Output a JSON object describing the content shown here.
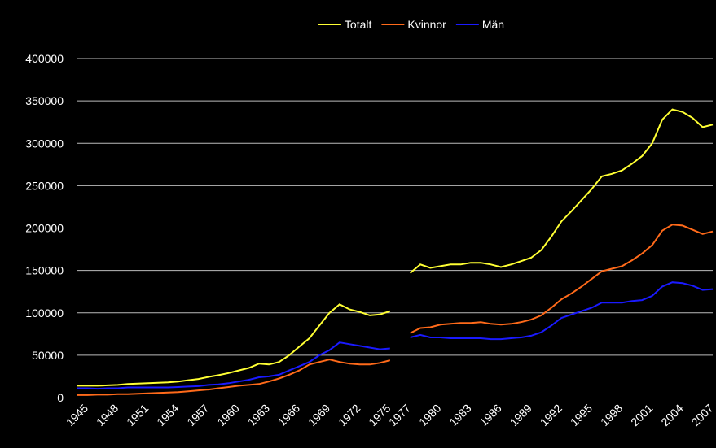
{
  "chart_data": {
    "type": "line",
    "categories": [
      "1945",
      null,
      null,
      "1948",
      null,
      null,
      "1951",
      null,
      null,
      "1954",
      null,
      null,
      "1957",
      null,
      null,
      "1960",
      null,
      null,
      "1963",
      null,
      null,
      "1966",
      null,
      null,
      "1969",
      null,
      null,
      "1972",
      null,
      null,
      "1975",
      null,
      "1977",
      null,
      null,
      "1980",
      null,
      null,
      "1983",
      null,
      null,
      "1986",
      null,
      null,
      "1989",
      null,
      null,
      "1992",
      null,
      null,
      "1995",
      null,
      null,
      "1998",
      null,
      null,
      "2001",
      null,
      null,
      "2004",
      null,
      null,
      "2007",
      null
    ],
    "series": [
      {
        "name": "Totalt",
        "color": "#ffff33",
        "values": [
          14000,
          14000,
          14000,
          14500,
          15000,
          16000,
          16500,
          17000,
          17500,
          18000,
          19000,
          20500,
          22000,
          24500,
          26500,
          29000,
          32000,
          35000,
          40000,
          39000,
          42000,
          50000,
          60000,
          70000,
          85000,
          100000,
          110000,
          104000,
          101000,
          97000,
          98000,
          102000,
          null,
          147000,
          157000,
          153000,
          155000,
          157000,
          157000,
          159000,
          159000,
          157000,
          154000,
          157000,
          161000,
          165000,
          174000,
          190000,
          208000,
          220000,
          233000,
          246000,
          261000,
          264000,
          268000,
          276000,
          285000,
          300000,
          328000,
          340000,
          337000,
          330000,
          319000,
          322000
        ]
      },
      {
        "name": "Kvinnor",
        "color": "#ff6a1a",
        "values": [
          3000,
          3000,
          3500,
          3500,
          4000,
          4000,
          4500,
          5000,
          5500,
          6000,
          6500,
          7500,
          8500,
          9500,
          11000,
          12500,
          14000,
          15000,
          16000,
          19000,
          22500,
          27000,
          32000,
          39000,
          42000,
          45000,
          42000,
          40000,
          39000,
          39000,
          41000,
          44000,
          null,
          76000,
          82000,
          83000,
          86000,
          87000,
          88000,
          88000,
          89000,
          87000,
          86000,
          87000,
          89000,
          92000,
          97000,
          106000,
          116000,
          123000,
          131000,
          140000,
          149000,
          152000,
          155000,
          162000,
          170000,
          180000,
          197000,
          204000,
          203000,
          198000,
          193000,
          196000
        ]
      },
      {
        "name": "Män",
        "color": "#1a1aff",
        "values": [
          11000,
          11000,
          10500,
          11000,
          11000,
          12000,
          12000,
          12000,
          12000,
          12000,
          12500,
          13000,
          13500,
          15000,
          15500,
          17000,
          19000,
          21000,
          24000,
          25000,
          27000,
          32000,
          37000,
          42000,
          50000,
          56000,
          65000,
          63000,
          61000,
          59000,
          57000,
          58000,
          null,
          71000,
          74000,
          71000,
          71000,
          70000,
          70000,
          70000,
          70000,
          69000,
          69000,
          70000,
          71000,
          73000,
          77000,
          85000,
          94000,
          98000,
          102000,
          106000,
          112000,
          112000,
          112000,
          114000,
          115000,
          120000,
          131000,
          136000,
          135000,
          132000,
          127000,
          128000
        ]
      }
    ],
    "ylim": [
      0,
      400000
    ],
    "yticks": [
      0,
      50000,
      100000,
      150000,
      200000,
      250000,
      300000,
      350000,
      400000
    ],
    "grid": true,
    "legend": "top"
  }
}
